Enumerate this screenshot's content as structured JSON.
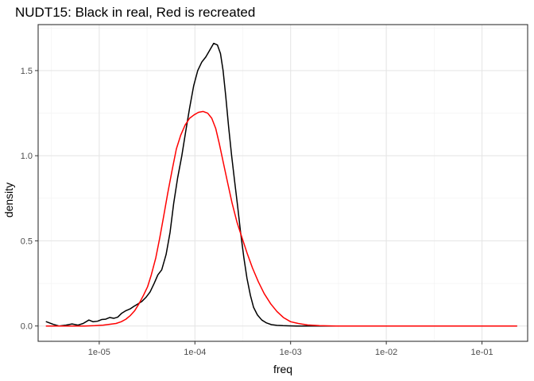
{
  "chart_data": {
    "type": "line",
    "title": "NUDT15: Black in real, Red is recreated",
    "xlabel": "freq",
    "ylabel": "density",
    "x_scale": "log10",
    "xlim": [
      2.3e-06,
      0.3
    ],
    "ylim": [
      -0.09,
      1.77
    ],
    "x_ticks": [
      {
        "value": 1e-05,
        "label": "1e-05"
      },
      {
        "value": 0.0001,
        "label": "1e-04"
      },
      {
        "value": 0.001,
        "label": "1e-03"
      },
      {
        "value": 0.01,
        "label": "1e-02"
      },
      {
        "value": 0.1,
        "label": "1e-01"
      }
    ],
    "y_ticks": [
      {
        "value": 0.0,
        "label": "0.0"
      },
      {
        "value": 0.5,
        "label": "0.5"
      },
      {
        "value": 1.0,
        "label": "1.0"
      },
      {
        "value": 1.5,
        "label": "1.5"
      }
    ],
    "grid": true,
    "legend": "none",
    "series": [
      {
        "color": "#000000",
        "x": [
          2.8e-06,
          3.3e-06,
          3.8e-06,
          4.5e-06,
          5.2e-06,
          6e-06,
          6.8e-06,
          7.8e-06,
          8.6e-06,
          9.6e-06,
          1.06e-05,
          1.17e-05,
          1.29e-05,
          1.42e-05,
          1.56e-05,
          1.72e-05,
          1.9e-05,
          2.1e-05,
          2.3e-05,
          2.55e-05,
          2.8e-05,
          3.1e-05,
          3.4e-05,
          3.75e-05,
          4.1e-05,
          4.5e-05,
          5e-05,
          5.5e-05,
          6e-05,
          6.6e-05,
          7.3e-05,
          8e-05,
          8.8e-05,
          9.7e-05,
          0.000107,
          0.000118,
          0.00013,
          0.000143,
          0.000157,
          0.000172,
          0.000185,
          0.000197,
          0.00021,
          0.000225,
          0.000242,
          0.00026,
          0.00028,
          0.0003,
          0.000325,
          0.00035,
          0.00038,
          0.00041,
          0.00045,
          0.0005,
          0.00056,
          0.00063,
          0.00072,
          0.00083,
          0.00096,
          0.00115,
          0.0015,
          0.0022,
          0.005,
          0.01,
          0.05,
          0.1,
          0.18,
          0.23
        ],
        "y": [
          0.025,
          0.01,
          0.0,
          0.005,
          0.012,
          0.005,
          0.015,
          0.035,
          0.025,
          0.028,
          0.038,
          0.04,
          0.05,
          0.045,
          0.052,
          0.075,
          0.09,
          0.1,
          0.115,
          0.13,
          0.145,
          0.17,
          0.2,
          0.25,
          0.3,
          0.33,
          0.42,
          0.55,
          0.72,
          0.87,
          1.0,
          1.14,
          1.28,
          1.41,
          1.5,
          1.55,
          1.58,
          1.62,
          1.66,
          1.65,
          1.6,
          1.5,
          1.35,
          1.17,
          1.0,
          0.85,
          0.7,
          0.55,
          0.4,
          0.28,
          0.18,
          0.11,
          0.065,
          0.035,
          0.018,
          0.008,
          0.004,
          0.002,
          0.001,
          0.0,
          0.0,
          0.0,
          0.0,
          0.0,
          0.0,
          0.0,
          0.0,
          0.0
        ]
      },
      {
        "color": "#ff0000",
        "x": [
          2.8e-06,
          3.3e-06,
          3.8e-06,
          4.5e-06,
          5.5e-06,
          7e-06,
          9e-06,
          1.1e-05,
          1.3e-05,
          1.5e-05,
          1.7e-05,
          1.9e-05,
          2.1e-05,
          2.35e-05,
          2.6e-05,
          2.9e-05,
          3.2e-05,
          3.5e-05,
          3.9e-05,
          4.3e-05,
          4.7e-05,
          5.2e-05,
          5.8e-05,
          6.4e-05,
          7.1e-05,
          7.9e-05,
          8.8e-05,
          9.8e-05,
          0.000109,
          0.000122,
          0.000136,
          0.00015,
          0.000165,
          0.00018,
          0.000198,
          0.00022,
          0.000245,
          0.000275,
          0.00031,
          0.00035,
          0.0004,
          0.00046,
          0.00053,
          0.00062,
          0.00072,
          0.00084,
          0.001,
          0.0012,
          0.0015,
          0.002,
          0.003,
          0.006,
          0.01,
          0.05,
          0.1,
          0.18,
          0.23
        ],
        "y": [
          0.0,
          0.0,
          0.0,
          0.0,
          0.0,
          0.0,
          0.002,
          0.005,
          0.01,
          0.015,
          0.025,
          0.04,
          0.06,
          0.09,
          0.13,
          0.18,
          0.23,
          0.3,
          0.4,
          0.52,
          0.64,
          0.78,
          0.92,
          1.04,
          1.12,
          1.18,
          1.22,
          1.24,
          1.255,
          1.26,
          1.25,
          1.22,
          1.16,
          1.07,
          0.96,
          0.84,
          0.72,
          0.61,
          0.52,
          0.43,
          0.34,
          0.26,
          0.19,
          0.13,
          0.085,
          0.05,
          0.025,
          0.015,
          0.006,
          0.002,
          0.0,
          0.0,
          0.0,
          0.0,
          0.0,
          0.0,
          0.0
        ]
      }
    ]
  }
}
